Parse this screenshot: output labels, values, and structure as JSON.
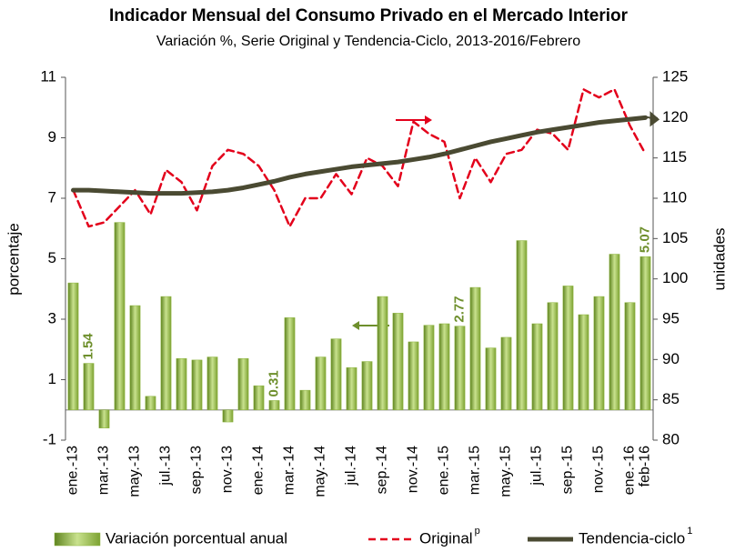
{
  "chart_data": {
    "type": "bar_line",
    "title": "Indicador Mensual del Consumo Privado en el Mercado Interior",
    "subtitle": "Variación %, Serie Original y Tendencia-Ciclo, 2013-2016/Febrero",
    "y_label": "porcentaje",
    "y2_label": "unidades",
    "categories": [
      "ene.-13",
      null,
      "mar.-13",
      null,
      "may.-13",
      null,
      "jul.-13",
      null,
      "sep.-13",
      null,
      "nov.-13",
      null,
      "ene.-14",
      null,
      "mar.-14",
      null,
      "may.-14",
      null,
      "jul.-14",
      null,
      "sep.-14",
      null,
      "nov.-14",
      null,
      "ene.-15",
      null,
      "mar.-15",
      null,
      "may.-15",
      null,
      "jul.-15",
      null,
      "sep.-15",
      null,
      "nov.-15",
      null,
      "ene.-16",
      "feb-16"
    ],
    "ylim": [
      -1,
      11
    ],
    "yticks": [
      -1,
      1,
      3,
      5,
      7,
      9,
      11
    ],
    "y2lim": [
      80,
      125
    ],
    "y2ticks": [
      80,
      85,
      90,
      95,
      100,
      105,
      110,
      115,
      120,
      125
    ],
    "series": [
      {
        "name": "Variación porcentual anual",
        "type": "bar",
        "color": "#8cb43c",
        "values": [
          4.2,
          1.54,
          -0.6,
          6.2,
          3.45,
          0.45,
          3.75,
          1.7,
          1.65,
          1.75,
          -0.4,
          1.7,
          0.8,
          0.31,
          3.05,
          0.65,
          1.75,
          2.35,
          1.4,
          1.6,
          3.75,
          3.2,
          2.25,
          2.8,
          2.85,
          2.77,
          4.05,
          2.05,
          2.4,
          5.6,
          2.85,
          3.55,
          4.1,
          3.15,
          3.75,
          5.15,
          3.55,
          5.07
        ],
        "value_labels": [
          null,
          "1.54",
          null,
          null,
          null,
          null,
          null,
          null,
          null,
          null,
          null,
          null,
          null,
          "0.31",
          null,
          null,
          null,
          null,
          null,
          null,
          null,
          null,
          null,
          null,
          null,
          "2.77",
          null,
          null,
          null,
          null,
          null,
          null,
          null,
          null,
          null,
          null,
          null,
          "5.07"
        ]
      },
      {
        "name": "Original",
        "name_sup": "p",
        "type": "line",
        "axis": "y2",
        "color": "#e3001b",
        "dashed": true,
        "values": [
          111,
          106.5,
          107,
          109,
          111,
          108,
          113.5,
          112,
          108.5,
          114,
          116,
          115.5,
          114,
          111,
          106.5,
          110,
          110,
          113,
          110.5,
          115,
          114,
          111.5,
          119.5,
          118,
          117,
          110,
          115,
          112,
          115.5,
          116,
          118.5,
          118,
          116,
          123.5,
          122.5,
          123.5,
          119,
          115.5
        ]
      },
      {
        "name": "Tendencia-ciclo",
        "name_sup": "1",
        "type": "line",
        "axis": "y2",
        "color": "#4a4a32",
        "dashed": false,
        "values": [
          111,
          111,
          110.9,
          110.8,
          110.7,
          110.6,
          110.6,
          110.6,
          110.7,
          110.8,
          111,
          111.3,
          111.7,
          112.1,
          112.6,
          113,
          113.3,
          113.6,
          113.9,
          114.1,
          114.3,
          114.5,
          114.8,
          115.1,
          115.5,
          116,
          116.5,
          117,
          117.4,
          117.8,
          118.2,
          118.5,
          118.8,
          119.1,
          119.4,
          119.6,
          119.8,
          120
        ]
      }
    ]
  }
}
